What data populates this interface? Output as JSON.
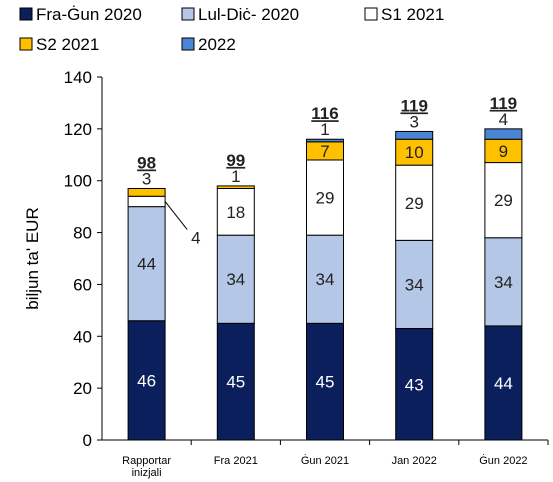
{
  "chart_data": {
    "type": "bar",
    "stacked": true,
    "title": "",
    "xlabel": "",
    "ylabel": "biljun ta' EUR",
    "ylim": [
      0,
      140
    ],
    "yticks": [
      0,
      20,
      40,
      60,
      80,
      100,
      120,
      140
    ],
    "grid": false,
    "legend_position": "top",
    "categories": [
      "Rapportar inizjali",
      "Fra 2021",
      "Ġun 2021",
      "Jan 2022",
      "Ġun 2022"
    ],
    "category_lines": [
      [
        "Rapportar",
        "inizjali"
      ],
      [
        "Fra 2021"
      ],
      [
        "Ġun 2021"
      ],
      [
        "Jan 2022"
      ],
      [
        "Ġun 2022"
      ]
    ],
    "series": [
      {
        "name": "Fra-Ġun 2020",
        "color": "#0b1f5c",
        "values": [
          46,
          45,
          45,
          43,
          44
        ]
      },
      {
        "name": "Lul-Diċ- 2020",
        "color": "#b4c7e7",
        "values": [
          44,
          34,
          34,
          34,
          34
        ]
      },
      {
        "name": "S1 2021",
        "color": "#ffffff",
        "values": [
          4,
          18,
          29,
          29,
          29
        ]
      },
      {
        "name": "S2 2021",
        "color": "#ffc000",
        "values": [
          3,
          1,
          7,
          10,
          9
        ]
      },
      {
        "name": "2022",
        "color": "#4a86d4",
        "values": [
          0,
          0,
          1,
          3,
          4
        ]
      }
    ],
    "segment_labels": [
      [
        "46",
        "45",
        "45",
        "43",
        "44"
      ],
      [
        "44",
        "34",
        "34",
        "34",
        "34"
      ],
      [
        "4",
        "18",
        "29",
        "29",
        "29"
      ],
      [
        "3",
        "1",
        "7",
        "10",
        "9"
      ],
      [
        "",
        "",
        "1",
        "3",
        "4"
      ]
    ],
    "totals": [
      "98",
      "99",
      "116",
      "119",
      "119"
    ]
  }
}
